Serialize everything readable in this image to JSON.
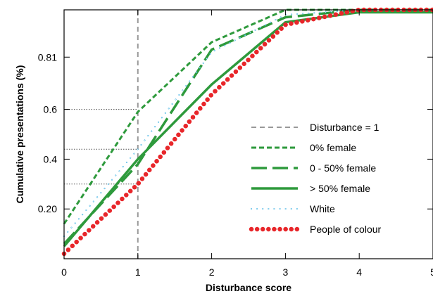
{
  "chart_data": {
    "type": "line",
    "xlabel": "Disturbance score",
    "ylabel": "Cumulative presentations (%)",
    "xlim": [
      0,
      5
    ],
    "ylim": [
      0,
      1
    ],
    "x_ticks": [
      0,
      1,
      2,
      3,
      4,
      5
    ],
    "x_tick_labels": [
      "0",
      "1",
      "2",
      "3",
      "4",
      "5"
    ],
    "y_ticks": [
      0.2,
      0.4,
      0.6,
      0.81
    ],
    "y_tick_labels": [
      "0.20",
      "0.4",
      "0.6",
      "0.81"
    ],
    "grid": false,
    "legend_position": "lower-right",
    "reference_vline": {
      "name": "Disturbance = 1",
      "x": 1,
      "color": "#999999",
      "style": "dashed"
    },
    "reference_hlines": [
      0.6,
      0.44,
      0.3
    ],
    "series": [
      {
        "name": "0% female",
        "color": "#2e9a3c",
        "style": "short-dash",
        "x": [
          0,
          1,
          2,
          3,
          4,
          5
        ],
        "y": [
          0.14,
          0.59,
          0.87,
          1.0,
          1.0,
          1.0
        ]
      },
      {
        "name": "0 - 50% female",
        "color": "#2e9a3c",
        "style": "long-dash",
        "x": [
          0,
          1,
          2,
          3,
          4,
          5
        ],
        "y": [
          0.06,
          0.38,
          0.84,
          0.97,
          1.0,
          1.0
        ]
      },
      {
        "name": "> 50% female",
        "color": "#2e9a3c",
        "style": "solid",
        "x": [
          0,
          1,
          2,
          3,
          4,
          5
        ],
        "y": [
          0.05,
          0.4,
          0.7,
          0.95,
          0.99,
          0.99
        ]
      },
      {
        "name": "White",
        "color": "#29a9e0",
        "style": "open-circles",
        "x": [
          0,
          1,
          2,
          3,
          4,
          5
        ],
        "y": [
          0.09,
          0.44,
          0.83,
          0.98,
          1.0,
          1.0
        ]
      },
      {
        "name": "People of colour",
        "color": "#e8262a",
        "style": "filled-dots",
        "x": [
          0,
          1,
          2,
          3,
          4,
          5
        ],
        "y": [
          0.02,
          0.3,
          0.66,
          0.94,
          1.0,
          1.0
        ]
      }
    ]
  }
}
